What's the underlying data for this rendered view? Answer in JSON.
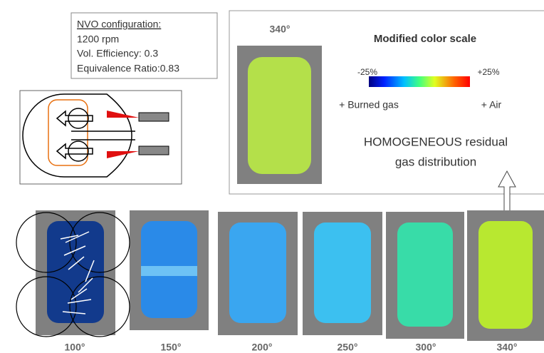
{
  "config": {
    "title": "NVO configuration:",
    "lines": [
      "1200 rpm",
      "Vol. Efficiency: 0.3",
      "Equivalence Ratio:0.83"
    ]
  },
  "inset": {
    "angle": "340°",
    "scale_title": "Modified color scale",
    "scale_min": "-25%",
    "scale_max": "+25%",
    "left_label": "+ Burned gas",
    "right_label": "+ Air",
    "conclusion": [
      "HOMOGENEOUS residual",
      "gas distribution"
    ],
    "color": "#b4e04a"
  },
  "frames": [
    {
      "angle": "100°",
      "color": "#123a8c"
    },
    {
      "angle": "150°",
      "color": "#2a8ae8"
    },
    {
      "angle": "200°",
      "color": "#3aa6f0"
    },
    {
      "angle": "250°",
      "color": "#3cc0f0"
    },
    {
      "angle": "300°",
      "color": "#38dca8"
    },
    {
      "angle": "340°",
      "color": "#b8e830"
    }
  ]
}
